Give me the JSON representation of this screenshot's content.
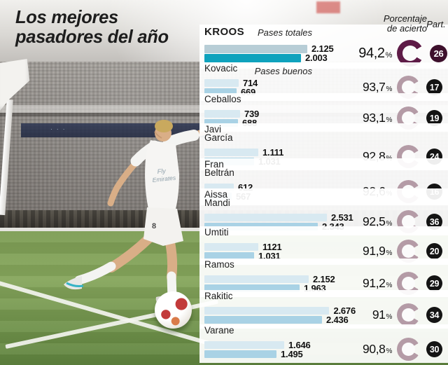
{
  "title": {
    "line1": "Los mejores",
    "line2": "pasadores del año"
  },
  "legend": {
    "totals": "Pases totales",
    "good": "Pases buenos"
  },
  "columns": {
    "pct_line1": "Porcentaje",
    "pct_line2": "de acierto",
    "part": "Part."
  },
  "colors": {
    "bar_total": "#d8e9f1",
    "bar_good": "#a9d2e5",
    "bar_total_highlight": "#b7cdd6",
    "bar_good_highlight": "#0fa2bd",
    "gauge": "#b49ba6",
    "gauge_highlight": "#5e1b47",
    "badge": "#141414",
    "badge_highlight": "#3d102c"
  },
  "photo": {
    "scene": "Toni Kroos taking a corner kick in a stadium",
    "jersey_line1": "Fly",
    "jersey_line2": "Emirates",
    "shirt_number": "8"
  },
  "chart_data": {
    "type": "bar",
    "orientation": "horizontal",
    "title": "Los mejores pasadores del año",
    "series": [
      "Pases totales",
      "Pases buenos"
    ],
    "value_max": 2676,
    "columns": [
      "Porcentaje de acierto",
      "Part."
    ],
    "players": [
      {
        "name_lines": [
          "KROOS"
        ],
        "totales": 2125,
        "buenos": 2003,
        "totales_label": "2.125",
        "buenos_label": "2.003",
        "pct": 94.2,
        "pct_label": "94,2",
        "part": "26",
        "highlight": true
      },
      {
        "name_lines": [
          "Kovacic"
        ],
        "totales": 714,
        "buenos": 669,
        "totales_label": "714",
        "buenos_label": "669",
        "pct": 93.7,
        "pct_label": "93,7",
        "part": "17",
        "highlight": false
      },
      {
        "name_lines": [
          "Ceballos"
        ],
        "totales": 739,
        "buenos": 688,
        "totales_label": "739",
        "buenos_label": "688",
        "pct": 93.1,
        "pct_label": "93,1",
        "part": "19",
        "highlight": false
      },
      {
        "name_lines": [
          "Javi",
          "García"
        ],
        "totales": 1111,
        "buenos": 1031,
        "totales_label": "1.111",
        "buenos_label": "1.031",
        "pct": 92.8,
        "pct_label": "92,8",
        "part": "24",
        "highlight": false
      },
      {
        "name_lines": [
          "Fran",
          "Beltrán"
        ],
        "totales": 612,
        "buenos": 567,
        "totales_label": "612",
        "buenos_label": "567",
        "pct": 92.6,
        "pct_label": "92,6",
        "part": "16",
        "highlight": false
      },
      {
        "name_lines": [
          "Aissa",
          "Mandi"
        ],
        "totales": 2531,
        "buenos": 2343,
        "totales_label": "2.531",
        "buenos_label": "2.343",
        "pct": 92.5,
        "pct_label": "92,5",
        "part": "36",
        "highlight": false
      },
      {
        "name_lines": [
          "Umtiti"
        ],
        "totales": 1121,
        "buenos": 1031,
        "totales_label": "1121",
        "buenos_label": "1.031",
        "pct": 91.9,
        "pct_label": "91,9",
        "part": "20",
        "highlight": false
      },
      {
        "name_lines": [
          "Ramos"
        ],
        "totales": 2152,
        "buenos": 1963,
        "totales_label": "2.152",
        "buenos_label": "1.963",
        "pct": 91.2,
        "pct_label": "91,2",
        "part": "29",
        "highlight": false
      },
      {
        "name_lines": [
          "Rakitic"
        ],
        "totales": 2676,
        "buenos": 2436,
        "totales_label": "2.676",
        "buenos_label": "2.436",
        "pct": 91.0,
        "pct_label": "91",
        "part": "34",
        "highlight": false
      },
      {
        "name_lines": [
          "Varane"
        ],
        "totales": 1646,
        "buenos": 1495,
        "totales_label": "1.646",
        "buenos_label": "1.495",
        "pct": 90.8,
        "pct_label": "90,8",
        "part": "30",
        "highlight": false
      }
    ]
  }
}
